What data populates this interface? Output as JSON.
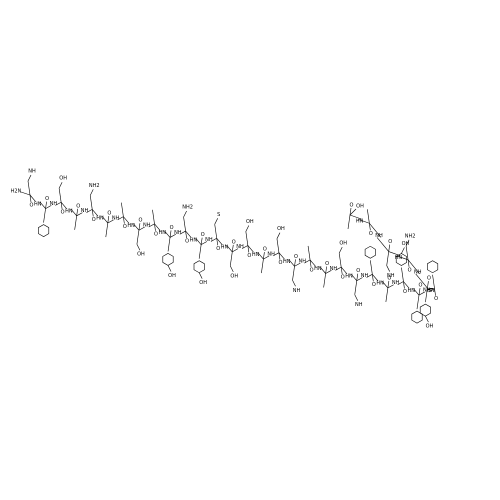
{
  "structure": {
    "n_terminus": "H2N",
    "c_terminus": "OH",
    "residues": [
      {
        "amide": "NH",
        "carbonyl": "O",
        "side": "NH"
      },
      {
        "amide": "HN",
        "carbonyl": "O",
        "ring": true
      },
      {
        "amide": "NH",
        "carbonyl": "O",
        "side": "OH"
      },
      {
        "amide": "HN",
        "carbonyl": "O"
      },
      {
        "amide": "NH",
        "carbonyl": "O",
        "side": "NH2"
      },
      {
        "amide": "HN",
        "carbonyl": "O"
      },
      {
        "amide": "NH",
        "carbonyl": "O"
      },
      {
        "amide": "HN",
        "carbonyl": "O",
        "side": "OH"
      },
      {
        "amide": "NH",
        "carbonyl": "O"
      },
      {
        "amide": "HN",
        "carbonyl": "O",
        "ring": true,
        "side": "OH"
      },
      {
        "amide": "NH",
        "carbonyl": "O",
        "side": "NH2"
      },
      {
        "amide": "HN",
        "carbonyl": "O",
        "ring": true,
        "side": "OH"
      },
      {
        "amide": "NH",
        "carbonyl": "O",
        "side": "S"
      },
      {
        "amide": "HN",
        "carbonyl": "O",
        "side": "OH"
      },
      {
        "amide": "NH",
        "carbonyl": "O",
        "side": "OH"
      },
      {
        "amide": "HN",
        "carbonyl": "O"
      },
      {
        "amide": "NH",
        "carbonyl": "O",
        "side": "OH"
      },
      {
        "amide": "HN",
        "carbonyl": "O",
        "side": "NH"
      },
      {
        "amide": "NH",
        "carbonyl": "O"
      },
      {
        "amide": "HN",
        "carbonyl": "O"
      },
      {
        "amide": "NH",
        "carbonyl": "O",
        "side": "OH"
      },
      {
        "amide": "HN",
        "carbonyl": "O",
        "side": "NH"
      },
      {
        "amide": "NH",
        "carbonyl": "O",
        "ring": true
      },
      {
        "amide": "HN",
        "carbonyl": "O"
      },
      {
        "amide": "NH",
        "carbonyl": "O",
        "ring": true,
        "side": "OH"
      },
      {
        "amide": "HN",
        "carbonyl": "O",
        "ring": true
      },
      {
        "amide": "NH",
        "carbonyl": "O",
        "ring": true
      },
      {
        "amide": "HN",
        "carbonyl": "O",
        "ring": true,
        "side": "OH"
      },
      {
        "amide": "NH",
        "carbonyl": "O",
        "side": "NH2"
      },
      {
        "amide": "HN",
        "carbonyl": "O",
        "side": "NH"
      },
      {
        "amide": "NH",
        "carbonyl": "O"
      },
      {
        "amide": "HN",
        "carbonyl": "O"
      }
    ]
  }
}
